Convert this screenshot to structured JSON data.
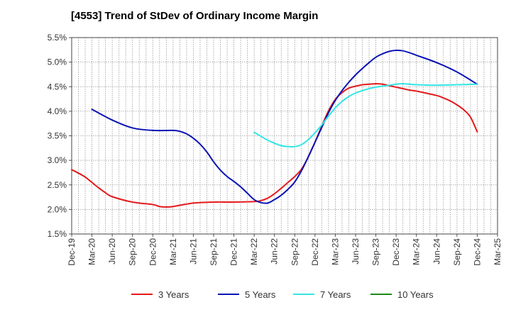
{
  "chart_data": {
    "type": "line",
    "title": "[4553]  Trend of StDev of Ordinary Income Margin",
    "xlabel": "",
    "ylabel": "",
    "ylim": [
      1.5,
      5.5
    ],
    "y_ticks": [
      "1.5%",
      "2.0%",
      "2.5%",
      "3.0%",
      "3.5%",
      "4.0%",
      "4.5%",
      "5.0%",
      "5.5%"
    ],
    "x_ticks": [
      "Dec-19",
      "Mar-20",
      "Jun-20",
      "Sep-20",
      "Dec-20",
      "Mar-21",
      "Jun-21",
      "Sep-21",
      "Dec-21",
      "Mar-22",
      "Jun-22",
      "Sep-22",
      "Dec-22",
      "Mar-23",
      "Jun-23",
      "Sep-23",
      "Dec-23",
      "Mar-24",
      "Jun-24",
      "Sep-24",
      "Dec-24",
      "Mar-25"
    ],
    "grid": true,
    "legend_position": "bottom",
    "series": [
      {
        "name": "3 Years",
        "color": "#e41a1c",
        "x": [
          "Dec-19",
          "Jan-20",
          "Feb-20",
          "Mar-20",
          "Apr-20",
          "May-20",
          "Jun-20",
          "Sep-20",
          "Dec-20",
          "Jan-21",
          "Feb-21",
          "Mar-21",
          "Jun-21",
          "Sep-21",
          "Dec-21",
          "Mar-22",
          "Apr-22",
          "May-22",
          "Jun-22",
          "Jul-22",
          "Aug-22",
          "Sep-22",
          "Oct-22",
          "Nov-22",
          "Dec-22",
          "Jan-23",
          "Feb-23",
          "Mar-23",
          "Apr-23",
          "May-23",
          "Jun-23",
          "Jul-23",
          "Aug-23",
          "Sep-23",
          "Oct-23",
          "Nov-23",
          "Dec-23",
          "Jan-24",
          "Feb-24",
          "Mar-24",
          "Jun-24",
          "Jul-24",
          "Aug-24",
          "Sep-24",
          "Oct-24",
          "Nov-24",
          "Dec-24"
        ],
        "values": [
          2.81,
          2.74,
          2.66,
          2.55,
          2.44,
          2.34,
          2.26,
          2.15,
          2.1,
          2.06,
          2.05,
          2.06,
          2.13,
          2.15,
          2.15,
          2.16,
          2.18,
          2.23,
          2.32,
          2.43,
          2.55,
          2.67,
          2.82,
          3.07,
          3.37,
          3.7,
          4.01,
          4.24,
          4.38,
          4.47,
          4.51,
          4.54,
          4.55,
          4.56,
          4.55,
          4.52,
          4.49,
          4.46,
          4.43,
          4.41,
          4.32,
          4.27,
          4.21,
          4.13,
          4.03,
          3.88,
          3.58
        ]
      },
      {
        "name": "5 Years",
        "color": "#0a14b4",
        "x": [
          "Mar-20",
          "Jun-20",
          "Sep-20",
          "Dec-20",
          "Mar-21",
          "Apr-21",
          "May-21",
          "Jun-21",
          "Jul-21",
          "Aug-21",
          "Sep-21",
          "Oct-21",
          "Nov-21",
          "Dec-21",
          "Jan-22",
          "Feb-22",
          "Mar-22",
          "Apr-22",
          "May-22",
          "Jun-22",
          "Jul-22",
          "Aug-22",
          "Sep-22",
          "Oct-22",
          "Nov-22",
          "Dec-22",
          "Jan-23",
          "Feb-23",
          "Mar-23",
          "Apr-23",
          "May-23",
          "Jun-23",
          "Jul-23",
          "Aug-23",
          "Sep-23",
          "Oct-23",
          "Nov-23",
          "Dec-23",
          "Jan-24",
          "Feb-24",
          "Mar-24",
          "Jun-24",
          "Sep-24",
          "Dec-24"
        ],
        "values": [
          4.04,
          3.82,
          3.66,
          3.61,
          3.61,
          3.59,
          3.54,
          3.45,
          3.33,
          3.17,
          2.97,
          2.8,
          2.67,
          2.57,
          2.46,
          2.33,
          2.2,
          2.14,
          2.13,
          2.2,
          2.29,
          2.41,
          2.56,
          2.79,
          3.07,
          3.37,
          3.67,
          3.97,
          4.22,
          4.42,
          4.59,
          4.74,
          4.87,
          4.99,
          5.1,
          5.17,
          5.22,
          5.24,
          5.23,
          5.19,
          5.14,
          4.99,
          4.8,
          4.55
        ]
      },
      {
        "name": "7 Years",
        "color": "#33e5e5",
        "x": [
          "Mar-22",
          "Apr-22",
          "May-22",
          "Jun-22",
          "Jul-22",
          "Aug-22",
          "Sep-22",
          "Oct-22",
          "Nov-22",
          "Dec-22",
          "Jan-23",
          "Feb-23",
          "Mar-23",
          "Apr-23",
          "May-23",
          "Jun-23",
          "Jul-23",
          "Aug-23",
          "Sep-23",
          "Oct-23",
          "Nov-23",
          "Dec-23",
          "Jan-24",
          "Feb-24",
          "Mar-24",
          "Jun-24",
          "Sep-24",
          "Dec-24"
        ],
        "values": [
          3.57,
          3.49,
          3.41,
          3.35,
          3.3,
          3.28,
          3.28,
          3.32,
          3.42,
          3.56,
          3.72,
          3.9,
          4.07,
          4.2,
          4.3,
          4.37,
          4.42,
          4.46,
          4.49,
          4.51,
          4.53,
          4.55,
          4.56,
          4.55,
          4.54,
          4.53,
          4.54,
          4.55
        ]
      },
      {
        "name": "10 Years",
        "color": "#1a8a1a",
        "x": [],
        "values": []
      }
    ]
  }
}
